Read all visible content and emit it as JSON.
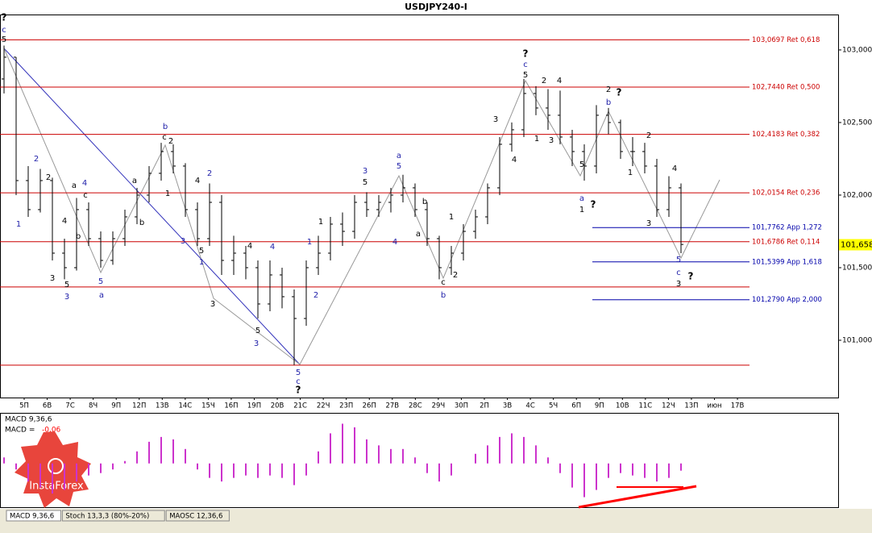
{
  "chart_data": {
    "type": "ohlc",
    "title": "USDJPY240-I",
    "ylim": [
      100.611,
      103.244
    ],
    "yticks": [
      {
        "value": 101.0,
        "label": "101,000"
      },
      {
        "value": 101.5,
        "label": "101,500"
      },
      {
        "value": 102.0,
        "label": "102,000"
      },
      {
        "value": 102.5,
        "label": "102,500"
      },
      {
        "value": 103.0,
        "label": "103,000"
      }
    ],
    "current_price": {
      "value": 101.658,
      "label": "101,658"
    },
    "levels": [
      {
        "value": 103.0697,
        "label": "103,0697 Ret 0,618",
        "color": "#cc0000"
      },
      {
        "value": 102.744,
        "label": "102,7440 Ret 0,500",
        "color": "#cc0000"
      },
      {
        "value": 102.4183,
        "label": "102,4183 Ret 0,382",
        "color": "#cc0000"
      },
      {
        "value": 102.0154,
        "label": "102,0154 Ret 0,236",
        "color": "#cc0000"
      },
      {
        "value": 101.7762,
        "label": "101,7762 App 1,272",
        "color": "#0000aa"
      },
      {
        "value": 101.6786,
        "label": "101,6786 Ret 0,114",
        "color": "#cc0000"
      },
      {
        "value": 101.5399,
        "label": "101,5399 App 1,618",
        "color": "#0000aa"
      },
      {
        "value": 101.279,
        "label": "101,2790 App 2,000",
        "color": "#0000aa"
      }
    ],
    "extra_lines": [
      101.367,
      100.828
    ],
    "dates": [
      "5П",
      "6В",
      "7С",
      "8Ч",
      "9П",
      "12П",
      "13В",
      "14С",
      "15Ч",
      "16П",
      "19П",
      "20В",
      "21С",
      "22Ч",
      "23П",
      "26П",
      "27В",
      "28С",
      "29Ч",
      "30П",
      "2П",
      "3В",
      "4С",
      "5Ч",
      "6П",
      "9П",
      "10В",
      "11С",
      "12Ч",
      "13П",
      "июн",
      "17В"
    ],
    "bars": [
      [
        102.8,
        103.03,
        102.7,
        102.95
      ],
      [
        102.95,
        102.95,
        102.0,
        102.1
      ],
      [
        102.1,
        102.2,
        101.85,
        101.9
      ],
      [
        101.9,
        102.18,
        101.88,
        102.1
      ],
      [
        102.1,
        102.12,
        101.55,
        101.6
      ],
      [
        101.6,
        101.7,
        101.42,
        101.5
      ],
      [
        101.5,
        101.98,
        101.48,
        101.9
      ],
      [
        101.9,
        101.95,
        101.65,
        101.7
      ],
      [
        101.7,
        101.75,
        101.5,
        101.55
      ],
      [
        101.55,
        101.75,
        101.52,
        101.7
      ],
      [
        101.7,
        101.9,
        101.65,
        101.85
      ],
      [
        101.85,
        102.05,
        101.8,
        102.0
      ],
      [
        102.0,
        102.2,
        101.95,
        102.15
      ],
      [
        102.15,
        102.36,
        102.1,
        102.3
      ],
      [
        102.3,
        102.35,
        102.15,
        102.2
      ],
      [
        102.2,
        102.22,
        101.85,
        101.9
      ],
      [
        101.9,
        101.95,
        101.65,
        101.7
      ],
      [
        101.7,
        102.08,
        101.65,
        101.95
      ],
      [
        101.95,
        102.0,
        101.45,
        101.55
      ],
      [
        101.55,
        101.72,
        101.45,
        101.6
      ],
      [
        101.6,
        101.65,
        101.42,
        101.5
      ],
      [
        101.5,
        101.55,
        101.15,
        101.25
      ],
      [
        101.25,
        101.55,
        101.2,
        101.45
      ],
      [
        101.45,
        101.5,
        101.22,
        101.3
      ],
      [
        101.3,
        101.35,
        100.83,
        101.15
      ],
      [
        101.15,
        101.55,
        101.1,
        101.5
      ],
      [
        101.5,
        101.72,
        101.45,
        101.6
      ],
      [
        101.6,
        101.85,
        101.55,
        101.8
      ],
      [
        101.8,
        101.88,
        101.65,
        101.75
      ],
      [
        101.75,
        102.0,
        101.7,
        101.95
      ],
      [
        101.95,
        102.02,
        101.85,
        101.9
      ],
      [
        101.9,
        102.0,
        101.85,
        101.95
      ],
      [
        101.95,
        102.05,
        101.88,
        102.0
      ],
      [
        102.0,
        102.14,
        101.95,
        102.05
      ],
      [
        102.05,
        102.08,
        101.85,
        101.9
      ],
      [
        101.9,
        101.95,
        101.65,
        101.7
      ],
      [
        101.7,
        101.72,
        101.42,
        101.5
      ],
      [
        101.5,
        101.65,
        101.45,
        101.6
      ],
      [
        101.6,
        101.8,
        101.55,
        101.75
      ],
      [
        101.75,
        101.9,
        101.7,
        101.85
      ],
      [
        101.85,
        102.08,
        101.8,
        102.05
      ],
      [
        102.05,
        102.4,
        102.0,
        102.35
      ],
      [
        102.35,
        102.5,
        102.3,
        102.45
      ],
      [
        102.45,
        102.8,
        102.4,
        102.7
      ],
      [
        102.7,
        102.75,
        102.55,
        102.6
      ],
      [
        102.6,
        102.73,
        102.45,
        102.55
      ],
      [
        102.55,
        102.72,
        102.35,
        102.4
      ],
      [
        102.4,
        102.45,
        102.2,
        102.3
      ],
      [
        102.3,
        102.35,
        102.1,
        102.2
      ],
      [
        102.2,
        102.62,
        102.15,
        102.55
      ],
      [
        102.55,
        102.6,
        102.42,
        102.5
      ],
      [
        102.5,
        102.52,
        102.25,
        102.3
      ],
      [
        102.3,
        102.4,
        102.2,
        102.3
      ],
      [
        102.3,
        102.36,
        102.15,
        102.2
      ],
      [
        102.2,
        102.25,
        101.85,
        101.9
      ],
      [
        101.9,
        102.13,
        101.85,
        102.05
      ],
      [
        102.05,
        102.08,
        101.6,
        101.66
      ]
    ],
    "macd_title": "MACD 9,36,6",
    "macd_prefix": "MACD =",
    "macd_value": {
      "value": -0.06,
      "label": "-0,06"
    },
    "macd_ylim": [
      -0.37,
      0.4
    ],
    "macd_color": "#cc33cc",
    "macd": [
      0.05,
      -0.05,
      -0.15,
      -0.2,
      -0.25,
      -0.22,
      -0.15,
      -0.1,
      -0.08,
      -0.05,
      0.02,
      0.1,
      0.18,
      0.22,
      0.2,
      0.12,
      -0.05,
      -0.12,
      -0.15,
      -0.12,
      -0.1,
      -0.12,
      -0.1,
      -0.12,
      -0.18,
      -0.1,
      0.1,
      0.25,
      0.33,
      0.3,
      0.2,
      0.15,
      0.12,
      0.12,
      0.05,
      -0.08,
      -0.15,
      -0.1,
      0.0,
      0.08,
      0.15,
      0.22,
      0.25,
      0.22,
      0.15,
      0.05,
      -0.08,
      -0.2,
      -0.28,
      -0.22,
      -0.12,
      -0.08,
      -0.1,
      -0.12,
      -0.15,
      -0.12,
      -0.06
    ],
    "tabs": [
      "MACD 9,36,6",
      "Stoch 13,3,3 (80%-20%)",
      "MAOSC 12,36,6"
    ],
    "logo": "InstaForex",
    "annotations": [
      "?",
      "c",
      "5",
      "2",
      "1",
      "2",
      "3",
      "5",
      "3",
      "4",
      "a",
      "4",
      "c",
      "b",
      "5",
      "a",
      "a",
      "b",
      "b",
      "c",
      "2",
      "1",
      "2",
      "4",
      "3",
      "5",
      "1",
      "3",
      "4",
      "4",
      "5",
      "3",
      "5",
      "c",
      "?",
      "1",
      "2",
      "1",
      "3",
      "5",
      "a",
      "5",
      "4",
      "b",
      "a",
      "c",
      "b",
      "2",
      "1",
      "3",
      "4",
      "?",
      "c",
      "5",
      "2",
      "4",
      "1",
      "3",
      "5",
      "a",
      "1",
      "?",
      "2",
      "?",
      "b",
      "2",
      "1",
      "3",
      "4",
      "5",
      "c",
      "3",
      "?"
    ]
  }
}
